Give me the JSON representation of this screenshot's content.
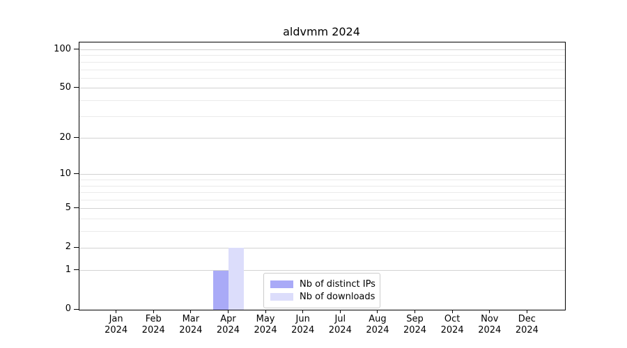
{
  "chart_data": {
    "type": "bar",
    "title": "aldvmm 2024",
    "categories": [
      "Jan",
      "Feb",
      "Mar",
      "Apr",
      "May",
      "Jun",
      "Jul",
      "Aug",
      "Sep",
      "Oct",
      "Nov",
      "Dec"
    ],
    "category_year": "2024",
    "series": [
      {
        "name": "Nb of distinct IPs",
        "color": "#a9aaf7",
        "values": [
          0,
          0,
          0,
          1,
          0,
          0,
          0,
          0,
          0,
          0,
          0,
          0
        ]
      },
      {
        "name": "Nb of downloads",
        "color": "#dcddfb",
        "values": [
          0,
          0,
          0,
          2,
          0,
          0,
          0,
          0,
          0,
          0,
          0,
          0
        ]
      }
    ],
    "yscale": "log1p",
    "ylim": [
      0,
      114
    ],
    "yticks": [
      0,
      1,
      2,
      5,
      10,
      20,
      50,
      100
    ],
    "yticks_minor": [
      3,
      4,
      6,
      7,
      8,
      9,
      30,
      40,
      60,
      70,
      80,
      90
    ],
    "grid": "horizontal",
    "legend_position": "lower center",
    "axis_color": "#000000",
    "grid_major_color": "#d2d2d2",
    "grid_minor_color": "#eaeaea"
  }
}
